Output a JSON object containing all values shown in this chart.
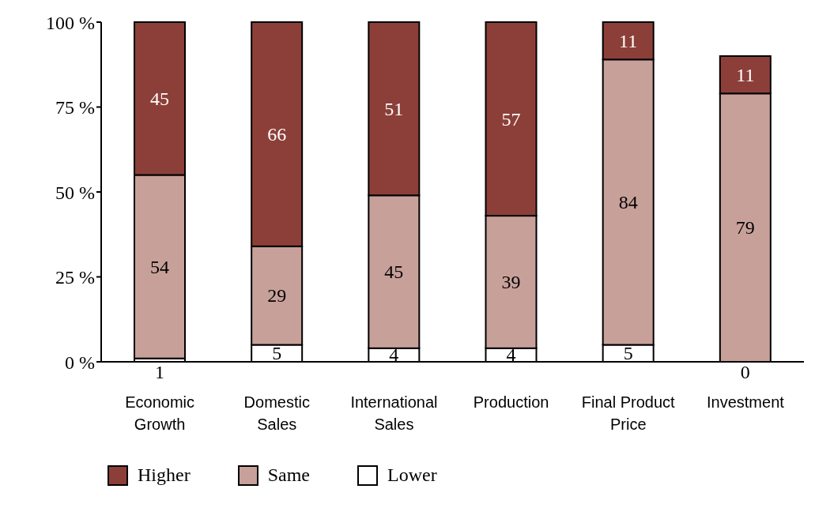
{
  "chart_data": {
    "type": "bar",
    "stacked": true,
    "categories": [
      "Economic Growth",
      "Domestic Sales",
      "International Sales",
      "Production",
      "Final Product Price",
      "Investment"
    ],
    "series": [
      {
        "name": "Lower",
        "color": "#ffffff",
        "values": [
          1,
          5,
          4,
          4,
          5,
          0
        ]
      },
      {
        "name": "Same",
        "color": "#c8a09a",
        "values": [
          54,
          29,
          45,
          39,
          84,
          79
        ]
      },
      {
        "name": "Higher",
        "color": "#8c3f38",
        "values": [
          45,
          66,
          51,
          57,
          11,
          11
        ]
      }
    ],
    "ylim": [
      0,
      100
    ],
    "yticks": [
      {
        "value": 0,
        "label": "0 %"
      },
      {
        "value": 25,
        "label": "25 %"
      },
      {
        "value": 50,
        "label": "50 %"
      },
      {
        "value": 75,
        "label": "75 %"
      },
      {
        "value": 100,
        "label": "100 %"
      }
    ],
    "data_labels": true,
    "legend": "bottom",
    "grid": false
  }
}
